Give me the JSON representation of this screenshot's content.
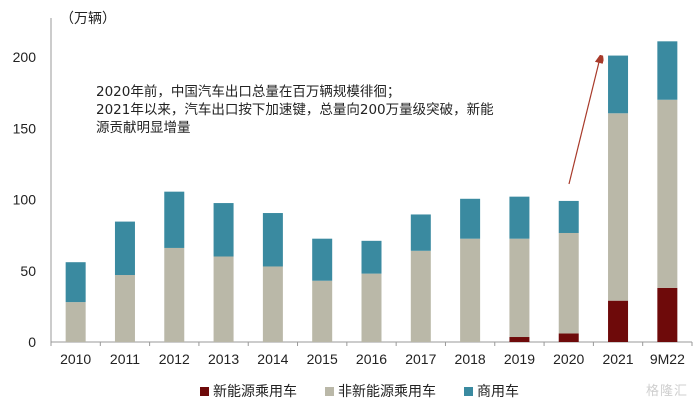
{
  "chart_data": {
    "type": "bar",
    "stacked": true,
    "title": "",
    "ylabel": "（万辆）",
    "xlabel": "",
    "ylim": [
      0,
      220
    ],
    "yticks": [
      0,
      50,
      100,
      150,
      200
    ],
    "grid": false,
    "legend_position": "bottom",
    "categories": [
      "2010",
      "2011",
      "2012",
      "2013",
      "2014",
      "2015",
      "2016",
      "2017",
      "2018",
      "2019",
      "2020",
      "2021",
      "9M22"
    ],
    "series": [
      {
        "name": "新能源乘用车",
        "color": "#6E0A0A",
        "values": [
          0,
          0,
          0,
          0,
          0,
          0,
          0,
          0,
          0,
          3.5,
          6,
          29,
          38
        ]
      },
      {
        "name": "非新能源乘用车",
        "color": "#BAB8A8",
        "values": [
          28,
          47,
          66,
          60,
          53,
          43,
          48,
          64,
          72.5,
          69,
          70.5,
          131.5,
          132
        ]
      },
      {
        "name": "商用车",
        "color": "#3A8AA0",
        "values": [
          28,
          37.5,
          39.5,
          37.5,
          37.5,
          29.5,
          23,
          25.5,
          28,
          29.5,
          22.5,
          40.5,
          41
        ]
      }
    ],
    "annotations": [
      "2020年前，中国汽车出口总量在百万辆规模徘徊；",
      "2021年以来，汽车出口按下加速键，总量向200万量级突破，新能",
      "源贡献明显增量"
    ],
    "arrow": {
      "from": "2020",
      "to": "2021",
      "color": "#A83A2A"
    }
  },
  "unit_label": "（万辆）",
  "annotation_text": "2020年前，中国汽车出口总量在百万辆规模徘徊；\n2021年以来，汽车出口按下加速键，总量向200万量级突破，新能\n源贡献明显增量",
  "legend": [
    {
      "label": "新能源乘用车",
      "color": "#6E0A0A"
    },
    {
      "label": "非新能源乘用车",
      "color": "#BAB8A8"
    },
    {
      "label": "商用车",
      "color": "#3A8AA0"
    }
  ],
  "watermark": "格隆汇"
}
